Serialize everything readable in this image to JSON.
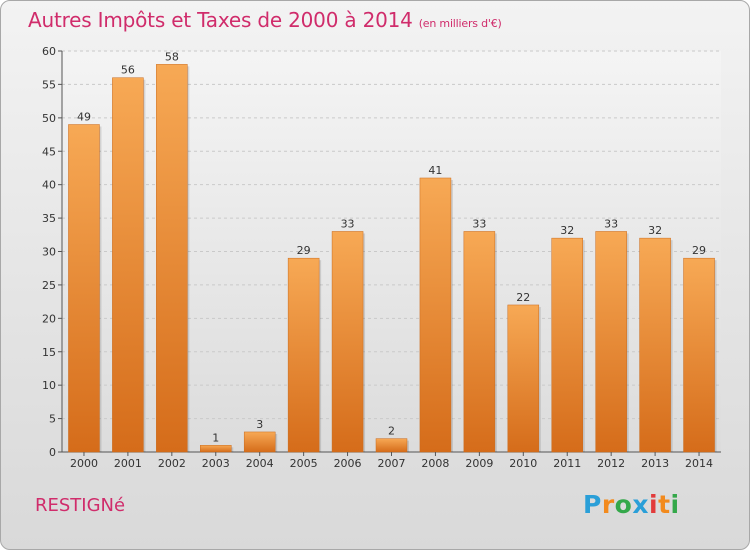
{
  "title": "Autres Impôts et Taxes de 2000 à 2014",
  "subtitle": "(en milliers d'€)",
  "commune": "RESTIGNé",
  "logo": {
    "letters": [
      "P",
      "r",
      "o",
      "x",
      "i",
      "t",
      "i"
    ],
    "colors": [
      "#2a9fd8",
      "#f28a1d",
      "#34a84a",
      "#2a9fd8",
      "#e23b3b",
      "#f28a1d",
      "#34a84a"
    ]
  },
  "colors": {
    "bar_top": "#f7a955",
    "bar_bottom": "#d56c1a",
    "title": "#d02c6b"
  },
  "chart_data": {
    "type": "bar",
    "categories": [
      "2000",
      "2001",
      "2002",
      "2003",
      "2004",
      "2005",
      "2006",
      "2007",
      "2008",
      "2009",
      "2010",
      "2011",
      "2012",
      "2013",
      "2014"
    ],
    "values": [
      49,
      56,
      58,
      1,
      3,
      29,
      33,
      2,
      41,
      33,
      22,
      32,
      33,
      32,
      29
    ],
    "ylim": [
      0,
      60
    ],
    "yticks": [
      0,
      5,
      10,
      15,
      20,
      25,
      30,
      35,
      40,
      45,
      50,
      55,
      60
    ],
    "grid": true,
    "data_labels": true
  }
}
